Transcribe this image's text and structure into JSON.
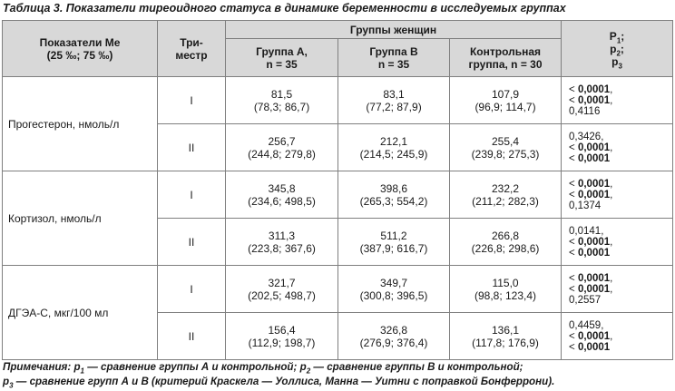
{
  "caption": "Таблица 3. Показатели тиреоидного статуса в динамике беременности в исследуемых группах",
  "header": {
    "indicator": [
      "Показатели Ме",
      "(25 ‰; 75 ‰)"
    ],
    "trimester": [
      "Три-",
      "местр"
    ],
    "groups_title": "Группы женщин",
    "group_a": [
      "Группа А,",
      "n = 35"
    ],
    "group_b": [
      "Группа В",
      "n = 35"
    ],
    "group_c": [
      "Контрольная",
      "группа, n = 30"
    ],
    "p_labels": [
      {
        "main": "P",
        "sub": "1",
        "tail": ";"
      },
      {
        "main": "p",
        "sub": "2",
        "tail": ";"
      },
      {
        "main": "p",
        "sub": "3",
        "tail": ""
      }
    ]
  },
  "rows": [
    {
      "indicator": "Прогестерон, нмоль/л",
      "trimester": "I",
      "a": [
        "81,5",
        "(78,3; 86,7)"
      ],
      "b": [
        "83,1",
        "(77,2; 87,9)"
      ],
      "c": [
        "107,9",
        "(96,9; 114,7)"
      ],
      "p": [
        {
          "pre": "< ",
          "val": "0,0001",
          "bold": true,
          "post": ","
        },
        {
          "pre": "< ",
          "val": "0,0001",
          "bold": true,
          "post": ","
        },
        {
          "pre": "",
          "val": "0,4116",
          "bold": false,
          "post": ""
        }
      ]
    },
    {
      "indicator": "",
      "trimester": "II",
      "a": [
        "256,7",
        "(244,8; 279,8)"
      ],
      "b": [
        "212,1",
        "(214,5; 245,9)"
      ],
      "c": [
        "255,4",
        "(239,8; 275,3)"
      ],
      "p": [
        {
          "pre": "",
          "val": "0,3426",
          "bold": false,
          "post": ","
        },
        {
          "pre": "< ",
          "val": "0,0001",
          "bold": true,
          "post": ","
        },
        {
          "pre": "< ",
          "val": "0,0001",
          "bold": true,
          "post": ""
        }
      ]
    },
    {
      "indicator": "Кортизол, нмоль/л",
      "trimester": "I",
      "a": [
        "345,8",
        "(234,6; 498,5)"
      ],
      "b": [
        "398,6",
        "(265,3; 554,2)"
      ],
      "c": [
        "232,2",
        "(211,2; 282,3)"
      ],
      "p": [
        {
          "pre": "< ",
          "val": "0,0001",
          "bold": true,
          "post": ","
        },
        {
          "pre": "< ",
          "val": "0,0001",
          "bold": true,
          "post": ","
        },
        {
          "pre": "",
          "val": "0,1374",
          "bold": false,
          "post": ""
        }
      ]
    },
    {
      "indicator": "",
      "trimester": "II",
      "a": [
        "311,3",
        "(223,8; 367,6)"
      ],
      "b": [
        "511,2",
        "(387,9; 616,7)"
      ],
      "c": [
        "266,8",
        "(226,8; 298,6)"
      ],
      "p": [
        {
          "pre": "",
          "val": "0,0141",
          "bold": false,
          "post": ","
        },
        {
          "pre": "< ",
          "val": "0,0001",
          "bold": true,
          "post": ","
        },
        {
          "pre": "< ",
          "val": "0,0001",
          "bold": true,
          "post": ""
        }
      ]
    },
    {
      "indicator": "ДГЭА-С, мкг/100 мл",
      "trimester": "I",
      "a": [
        "321,7",
        "(202,5; 498,7)"
      ],
      "b": [
        "349,7",
        "(300,8; 396,5)"
      ],
      "c": [
        "115,0",
        "(98,8; 123,4)"
      ],
      "p": [
        {
          "pre": "< ",
          "val": "0,0001",
          "bold": true,
          "post": ","
        },
        {
          "pre": "< ",
          "val": "0,0001",
          "bold": true,
          "post": ","
        },
        {
          "pre": "",
          "val": "0,2557",
          "bold": false,
          "post": ""
        }
      ]
    },
    {
      "indicator": "",
      "trimester": "II",
      "a": [
        "156,4",
        "(112,9; 198,7)"
      ],
      "b": [
        "326,8",
        "(276,9; 376,4)"
      ],
      "c": [
        "136,1",
        "(117,8; 176,9)"
      ],
      "p": [
        {
          "pre": "",
          "val": "0,4459",
          "bold": false,
          "post": ","
        },
        {
          "pre": "< ",
          "val": "0,0001",
          "bold": true,
          "post": ","
        },
        {
          "pre": "< ",
          "val": "0,0001",
          "bold": true,
          "post": ""
        }
      ]
    }
  ],
  "notes": {
    "line1": [
      {
        "t": "Примечания: "
      },
      {
        "t": "p"
      },
      {
        "sub": "1"
      },
      {
        "t": " — сравнение группы А и контрольной; "
      },
      {
        "t": "p"
      },
      {
        "sub": "2"
      },
      {
        "t": " — сравнение группы В и контрольной;"
      }
    ],
    "line2": [
      {
        "t": "p"
      },
      {
        "sub": "3"
      },
      {
        "t": " — сравнение групп А и В (критерий Краскела — Уоллиса, Манна — Уитни с поправкой Бонферрони)."
      }
    ]
  }
}
